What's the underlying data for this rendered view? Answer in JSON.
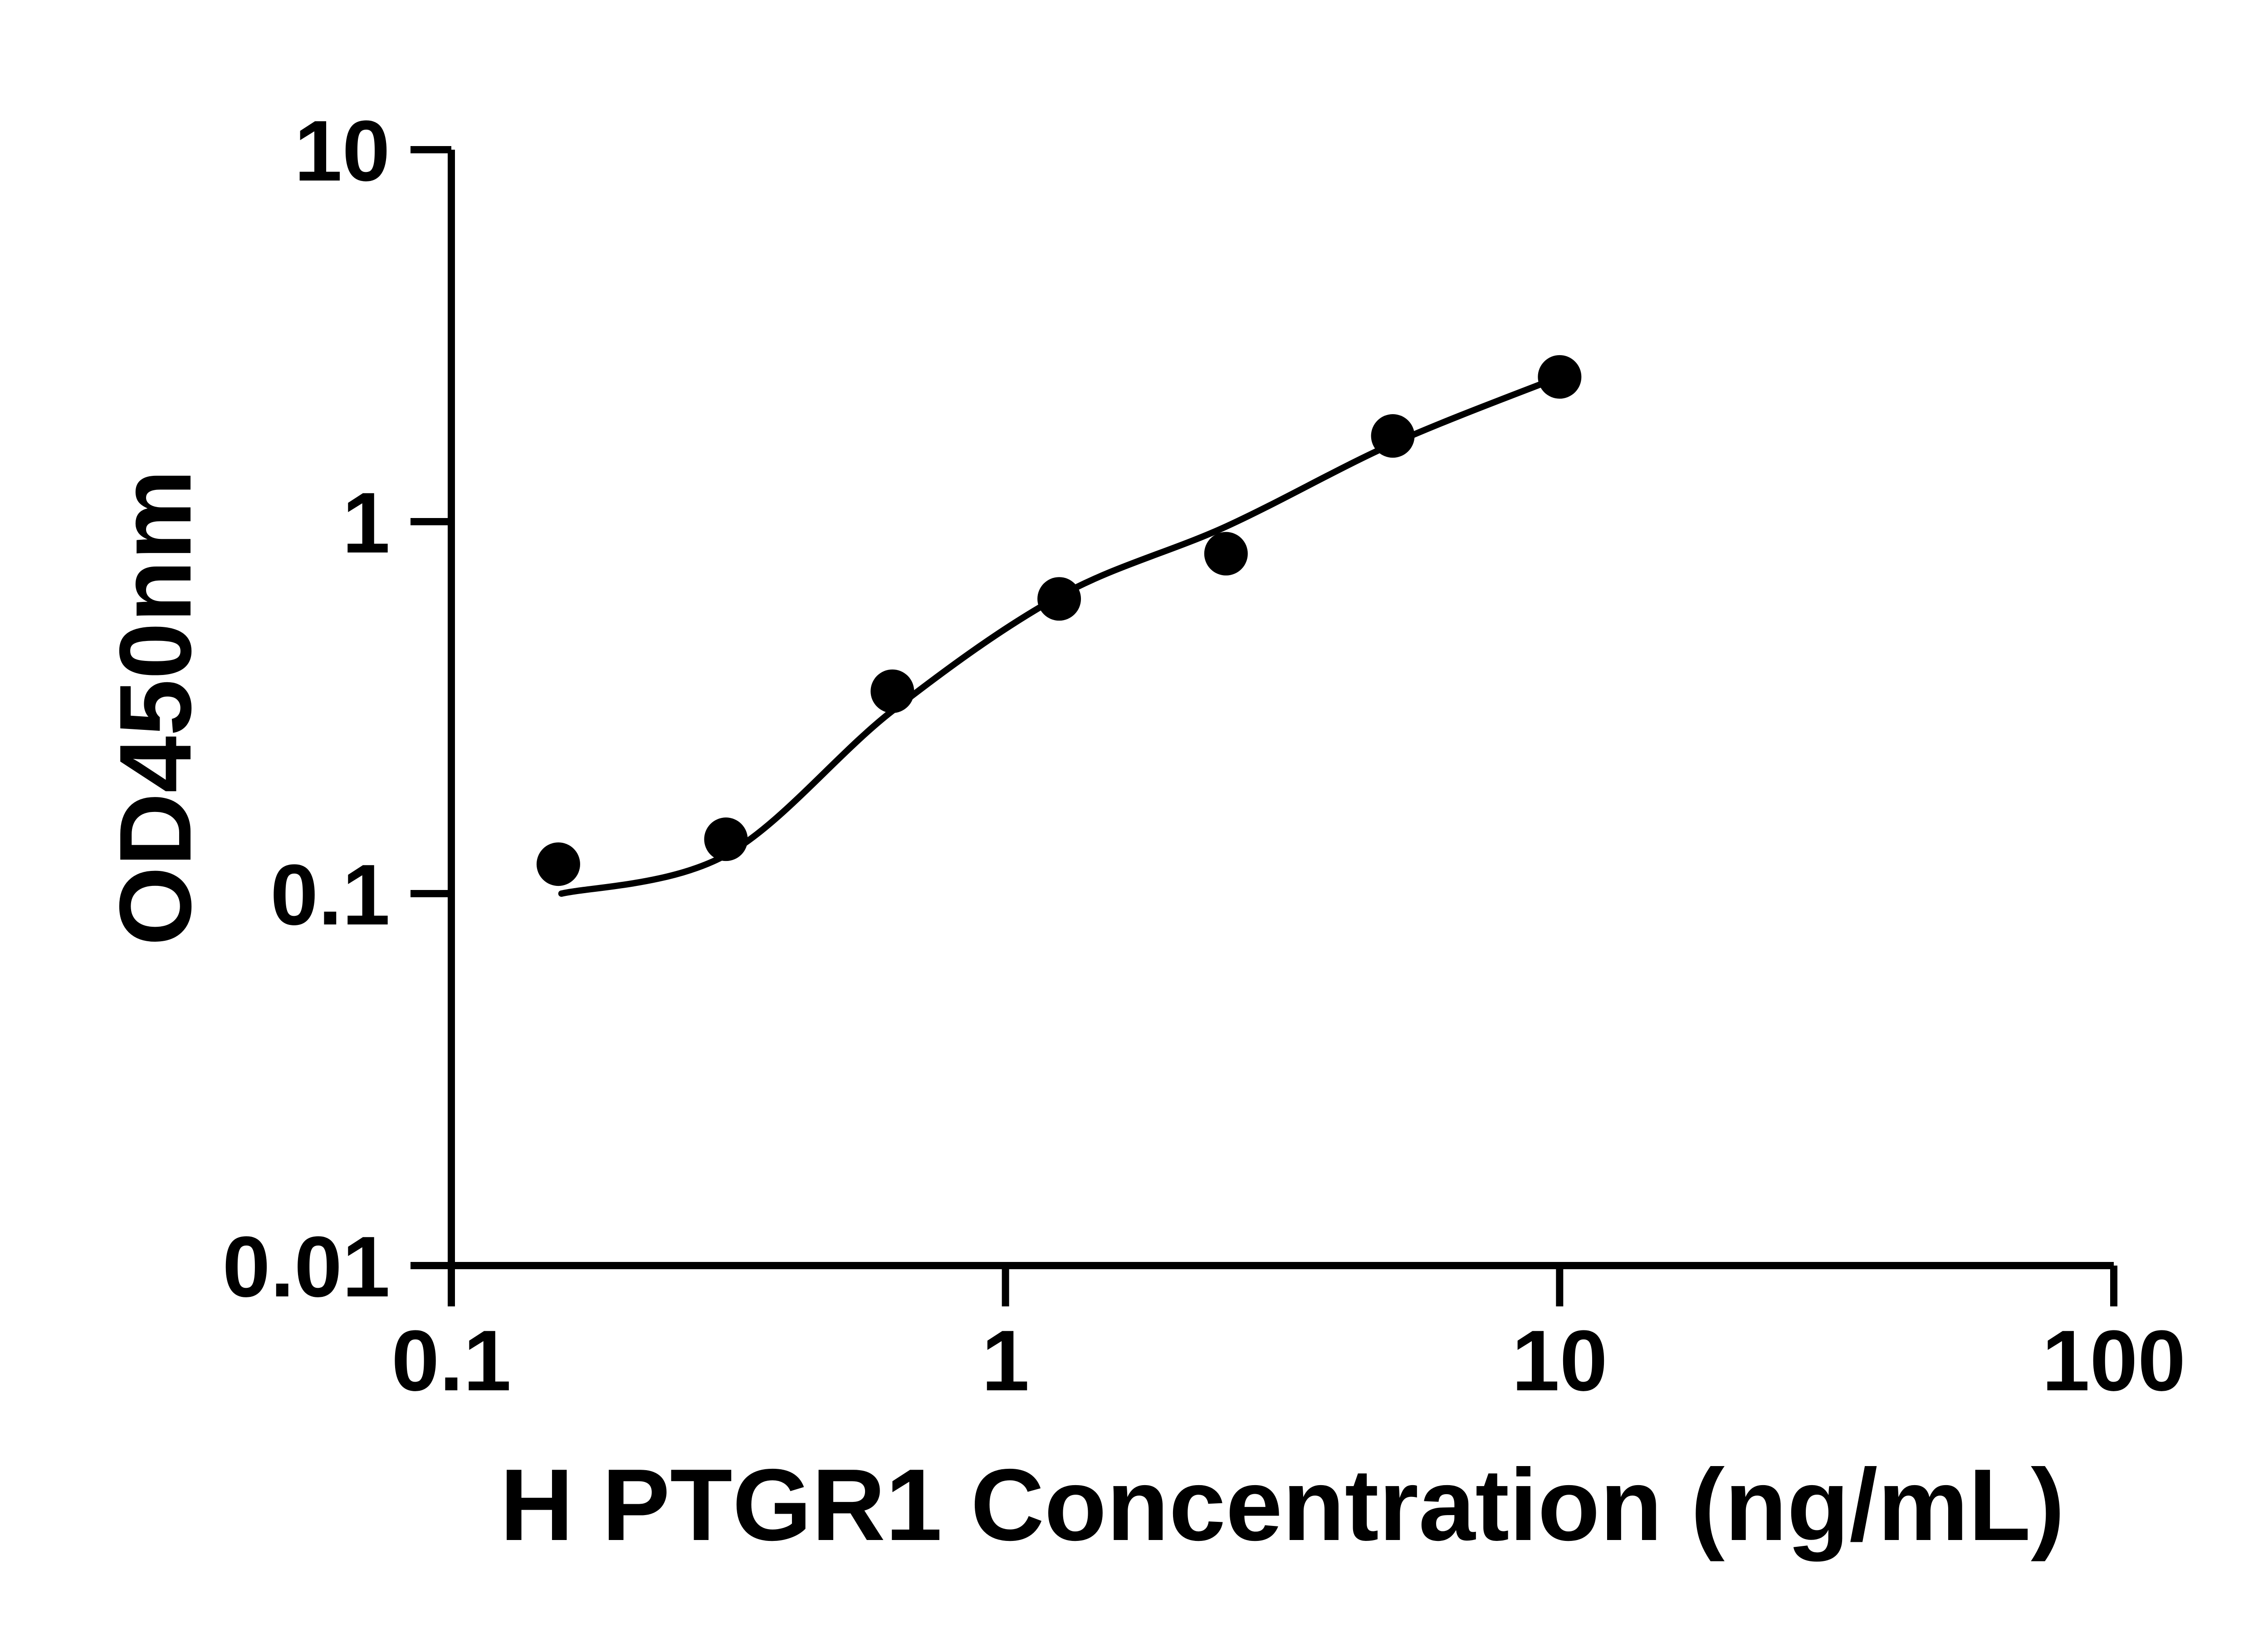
{
  "chart_data": {
    "type": "scatter",
    "title": "",
    "xlabel": "H PTGR1 Concentration (ng/mL)",
    "ylabel": "OD450nm",
    "x_scale": "log",
    "y_scale": "log",
    "xlim": [
      0.1,
      100
    ],
    "ylim": [
      0.01,
      10
    ],
    "grid": false,
    "legend": "none",
    "x_ticks": [
      {
        "value": 0.1,
        "label": "0.1"
      },
      {
        "value": 1,
        "label": "1"
      },
      {
        "value": 10,
        "label": "10"
      },
      {
        "value": 100,
        "label": "100"
      }
    ],
    "y_ticks": [
      {
        "value": 0.01,
        "label": "0.01"
      },
      {
        "value": 0.1,
        "label": "0.1"
      },
      {
        "value": 1,
        "label": "1"
      },
      {
        "value": 10,
        "label": "10"
      }
    ],
    "points": [
      {
        "x": 0.156,
        "y": 0.12
      },
      {
        "x": 0.313,
        "y": 0.14
      },
      {
        "x": 0.625,
        "y": 0.35
      },
      {
        "x": 1.25,
        "y": 0.62
      },
      {
        "x": 2.5,
        "y": 0.82
      },
      {
        "x": 5,
        "y": 1.7
      },
      {
        "x": 10,
        "y": 2.45
      }
    ],
    "fit_curve": [
      {
        "x": 0.158,
        "y": 0.1
      },
      {
        "x": 0.313,
        "y": 0.127
      },
      {
        "x": 0.625,
        "y": 0.31
      },
      {
        "x": 1.25,
        "y": 0.63
      },
      {
        "x": 2.5,
        "y": 0.97
      },
      {
        "x": 5,
        "y": 1.62
      },
      {
        "x": 10,
        "y": 2.45
      }
    ],
    "colors": {
      "axis": "#000000",
      "points": "#000000",
      "curve": "#000000",
      "background": "#ffffff"
    },
    "marker": {
      "shape": "circle",
      "radius_px": 48
    }
  }
}
